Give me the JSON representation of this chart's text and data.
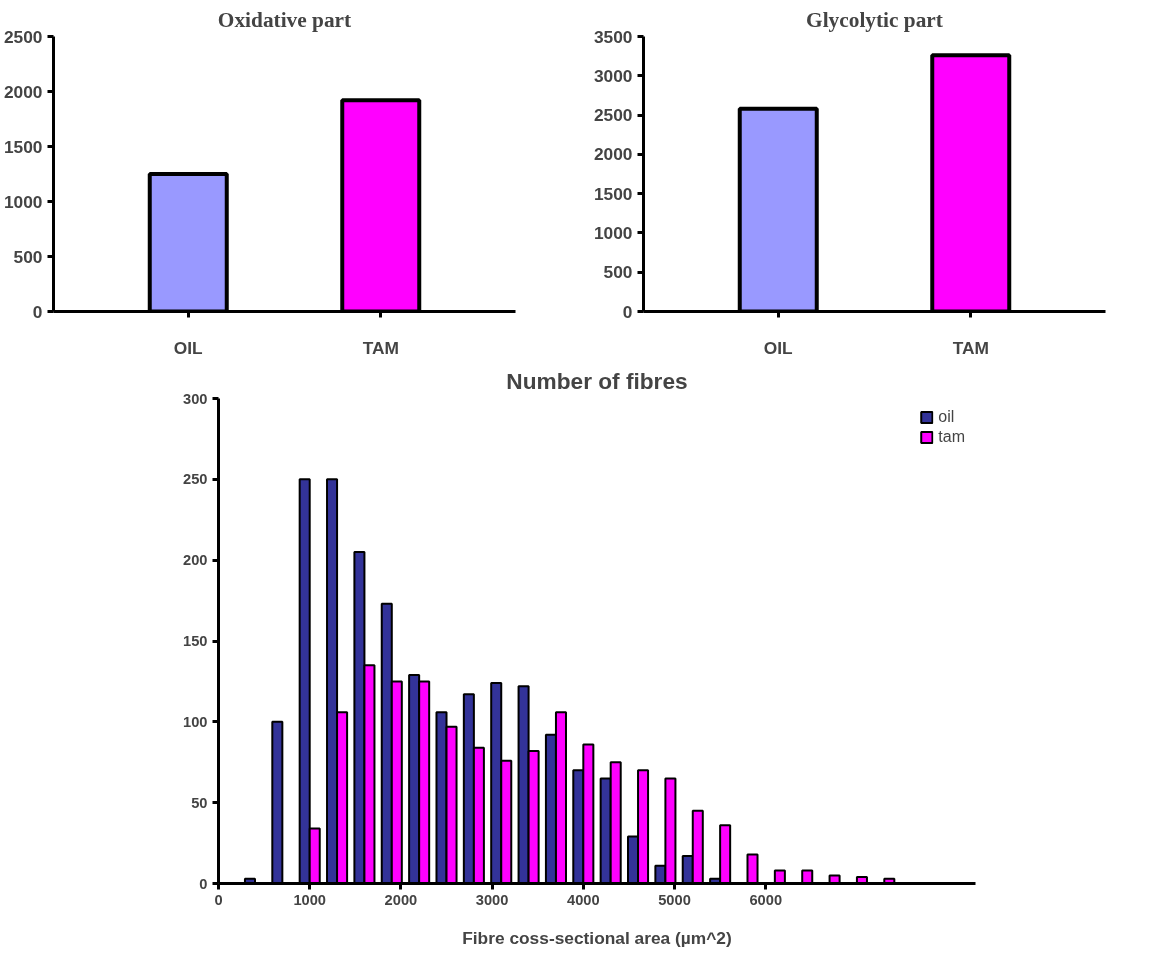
{
  "chart_data": [
    {
      "type": "bar",
      "title": "Oxidative part",
      "categories": [
        "OIL",
        "TAM"
      ],
      "values": [
        1250,
        1920
      ],
      "colors": [
        "#9999ff",
        "#ff00ff"
      ],
      "ylim": [
        0,
        2500
      ],
      "yticks": [
        0,
        500,
        1000,
        1500,
        2000,
        2500
      ],
      "grid": false,
      "legend": false
    },
    {
      "type": "bar",
      "title": "Glycolytic part",
      "categories": [
        "OIL",
        "TAM"
      ],
      "values": [
        2580,
        3260
      ],
      "colors": [
        "#9999ff",
        "#ff00ff"
      ],
      "ylim": [
        0,
        3500
      ],
      "yticks": [
        0,
        500,
        1000,
        1500,
        2000,
        2500,
        3000,
        3500
      ],
      "grid": false,
      "legend": false
    },
    {
      "type": "bar",
      "title": "Number of fibres",
      "xlabel": "Fibre coss-sectional area (µm^2)",
      "xlim": [
        0,
        8300
      ],
      "xticks": [
        0,
        1000,
        2000,
        3000,
        4000,
        5000,
        6000
      ],
      "ylim": [
        0,
        300
      ],
      "yticks": [
        0,
        50,
        100,
        150,
        200,
        250,
        300
      ],
      "grid": false,
      "legend": "top right",
      "series": [
        {
          "name": "oil",
          "color": "#333399",
          "x": [
            400,
            700,
            1000,
            1300,
            1600,
            1900,
            2200,
            2500,
            2800,
            3100,
            3400,
            3700,
            4000,
            4300,
            4600,
            4900,
            5200,
            5500
          ],
          "values": [
            3,
            100,
            250,
            250,
            205,
            173,
            129,
            106,
            117,
            124,
            122,
            92,
            70,
            65,
            29,
            11,
            17,
            3
          ]
        },
        {
          "name": "tam",
          "color": "#ff00ff",
          "x": [
            1000,
            1300,
            1600,
            1900,
            2200,
            2500,
            2800,
            3100,
            3400,
            3700,
            4000,
            4300,
            4600,
            4900,
            5200,
            5500,
            5800,
            6100,
            6400,
            6700,
            7000,
            7300
          ],
          "values": [
            34,
            106,
            135,
            125,
            125,
            97,
            84,
            76,
            82,
            106,
            86,
            75,
            70,
            65,
            45,
            36,
            18,
            8,
            8,
            5,
            4,
            3
          ]
        }
      ]
    }
  ]
}
